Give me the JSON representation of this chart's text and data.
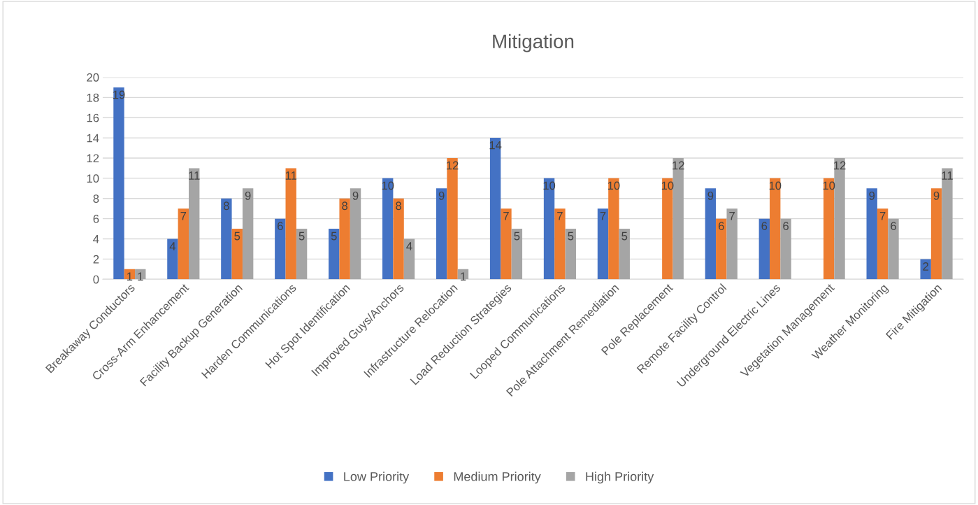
{
  "chart_data": {
    "type": "bar",
    "title": "Mitigation",
    "categories": [
      "Breakaway Conductors",
      "Cross-Arm Enhancement",
      "Facility Backup Generation",
      "Harden Communications",
      "Hot Spot Identification",
      "Improved Guys/Anchors",
      "Infrastructure Relocation",
      "Load Reduction Strategies",
      "Looped Communications",
      "Pole Attachment Remediation",
      "Pole Replacement",
      "Remote Facility Control",
      "Underground Electric Lines",
      "Vegetation Management",
      "Weather Monitoring",
      "Fire Mitigation"
    ],
    "series": [
      {
        "name": "Low Priority",
        "color": "#4472c4",
        "values": [
          19,
          4,
          8,
          6,
          5,
          10,
          9,
          14,
          10,
          7,
          null,
          9,
          6,
          null,
          9,
          2
        ]
      },
      {
        "name": "Medium Priority",
        "color": "#ed7d31",
        "values": [
          1,
          7,
          5,
          11,
          8,
          8,
          12,
          7,
          7,
          10,
          10,
          6,
          10,
          10,
          7,
          9
        ]
      },
      {
        "name": "High Priority",
        "color": "#a5a5a5",
        "values": [
          1,
          11,
          9,
          5,
          9,
          4,
          1,
          5,
          5,
          5,
          12,
          7,
          6,
          12,
          6,
          11
        ]
      }
    ],
    "ylim": [
      0,
      20
    ],
    "yticks": [
      0,
      2,
      4,
      6,
      8,
      10,
      12,
      14,
      16,
      18,
      20
    ],
    "grid": "y",
    "legend": "bottom",
    "data_labels": true
  }
}
